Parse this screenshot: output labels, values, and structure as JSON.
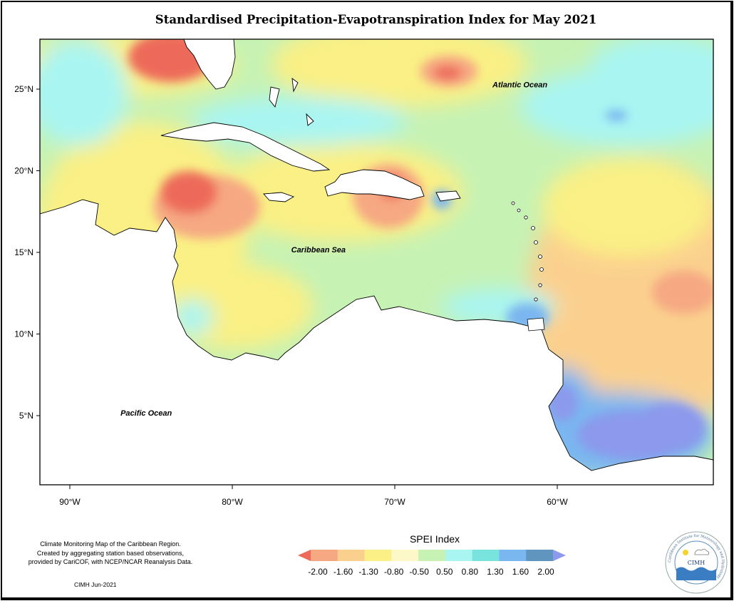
{
  "title": "Standardised Precipitation-Evapotranspiration Index for May 2021",
  "axes": {
    "y_ticks": [
      {
        "label": "25°N",
        "lat": 25
      },
      {
        "label": "20°N",
        "lat": 20
      },
      {
        "label": "15°N",
        "lat": 15
      },
      {
        "label": "10°N",
        "lat": 10
      },
      {
        "label": "5°N",
        "lat": 5
      }
    ],
    "x_ticks": [
      {
        "label": "90°W",
        "lon": -90
      },
      {
        "label": "80°W",
        "lon": -80
      },
      {
        "label": "70°W",
        "lon": -70
      },
      {
        "label": "60°W",
        "lon": -60
      }
    ]
  },
  "map_labels": [
    {
      "text": "Atlantic Ocean",
      "lon": -62.3,
      "lat": 25.1
    },
    {
      "text": "Caribbean Sea",
      "lon": -74.7,
      "lat": 15.0
    },
    {
      "text": "Pacific Ocean",
      "lon": -85.3,
      "lat": 5.0
    }
  ],
  "legend": {
    "title": "SPEI Index",
    "colors": [
      "#ed6a5a",
      "#f6a882",
      "#fbd08e",
      "#faf085",
      "#fdf8c8",
      "#c6f2b4",
      "#a9f5f2",
      "#79e3de",
      "#7ab6f0",
      "#5f95be",
      "#8c99ec"
    ],
    "tick_labels": [
      "-2.00",
      "-1.60",
      "-1.30",
      "-0.80",
      "-0.50",
      "0.50",
      "0.80",
      "1.30",
      "1.60",
      "2.00"
    ]
  },
  "footnote": {
    "line1": "Climate Monitoring Map of the Caribbean Region.",
    "line2": "Created by aggregating station based observations,",
    "line3": "provided by CariCOF, with NCEP/NCAR Reanalysis Data."
  },
  "credit": "CIMH Jun-2021",
  "logo": {
    "ring_text": "Caribbean Institute for Meteorology and Hydrology",
    "abbr": "CIMH"
  }
}
